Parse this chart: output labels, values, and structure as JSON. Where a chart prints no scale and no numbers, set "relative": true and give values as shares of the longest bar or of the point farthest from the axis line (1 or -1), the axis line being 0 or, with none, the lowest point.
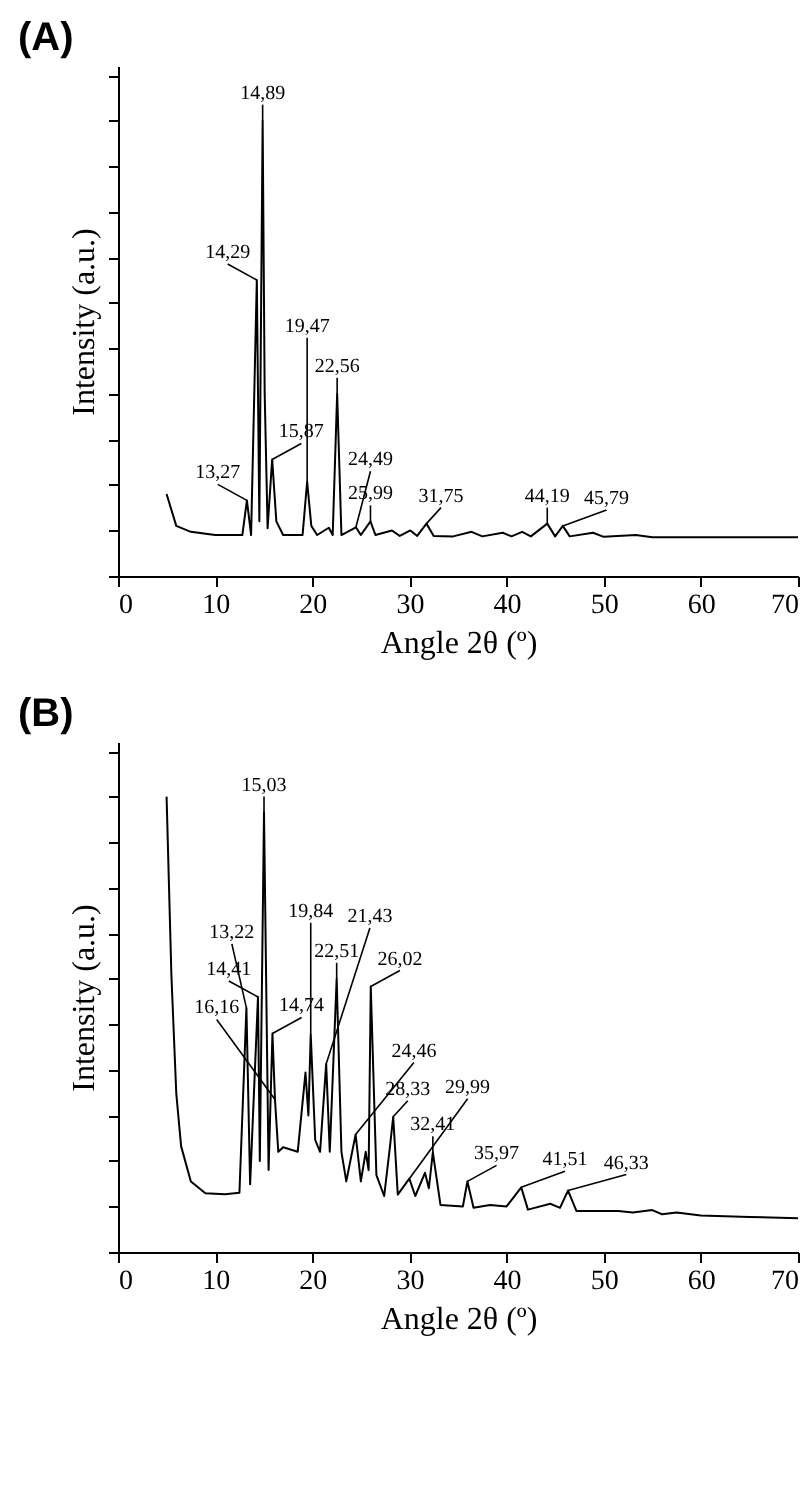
{
  "chart_data": [
    {
      "type": "line",
      "title": "(A)",
      "xlabel": "Angle 2θ (º)",
      "ylabel": "Intensity (a.u.)",
      "relative": true,
      "tick_labels": "x",
      "xlim": [
        0,
        70
      ],
      "xticks": [
        0,
        10,
        20,
        30,
        40,
        50,
        60,
        70
      ],
      "x": [
        5,
        6,
        7.5,
        10,
        12.8,
        13.27,
        13.7,
        14.29,
        14.55,
        14.89,
        15.1,
        15.4,
        15.87,
        16.3,
        17,
        19,
        19.47,
        19.9,
        20.5,
        21.7,
        22.1,
        22.56,
        23,
        24.49,
        25,
        25.99,
        26.5,
        28.2,
        29,
        30.1,
        30.8,
        31.75,
        32.5,
        34.5,
        36.4,
        37.5,
        39.6,
        40.5,
        41.6,
        42.5,
        44.19,
        45,
        45.79,
        46.5,
        48.9,
        50,
        53.3,
        55,
        70
      ],
      "series": [
        {
          "color": "#000000",
          "values": [
            0.18,
            0.11,
            0.097,
            0.09,
            0.09,
            0.166,
            0.09,
            0.65,
            0.12,
            1.0,
            0.4,
            0.105,
            0.256,
            0.12,
            0.09,
            0.09,
            0.207,
            0.11,
            0.09,
            0.106,
            0.09,
            0.4,
            0.09,
            0.107,
            0.09,
            0.12,
            0.09,
            0.1,
            0.088,
            0.1,
            0.088,
            0.115,
            0.088,
            0.087,
            0.097,
            0.087,
            0.095,
            0.087,
            0.097,
            0.087,
            0.115,
            0.087,
            0.11,
            0.087,
            0.095,
            0.086,
            0.09,
            0.085,
            0.085
          ]
        }
      ],
      "annotations": [
        {
          "text": "13,27",
          "x": 13.27,
          "y": 0.166
        },
        {
          "text": "14,29",
          "x": 14.29,
          "y": 0.65
        },
        {
          "text": "14,89",
          "x": 14.89,
          "y": 1.0
        },
        {
          "text": "15,87",
          "x": 15.87,
          "y": 0.256
        },
        {
          "text": "19,47",
          "x": 19.47,
          "y": 0.207
        },
        {
          "text": "22,56",
          "x": 22.56,
          "y": 0.4
        },
        {
          "text": "24,49",
          "x": 24.49,
          "y": 0.107
        },
        {
          "text": "25,99",
          "x": 25.99,
          "y": 0.12
        },
        {
          "text": "31,75",
          "x": 31.75,
          "y": 0.115
        },
        {
          "text": "44,19",
          "x": 44.19,
          "y": 0.115
        },
        {
          "text": "45,79",
          "x": 45.79,
          "y": 0.11
        }
      ]
    },
    {
      "type": "line",
      "title": "(B)",
      "xlabel": "Angle 2θ (º)",
      "ylabel": "Intensity (a.u.)",
      "relative": true,
      "tick_labels": "x",
      "xlim": [
        0,
        70
      ],
      "xticks": [
        0,
        10,
        20,
        30,
        40,
        50,
        60,
        70
      ],
      "x": [
        5,
        5.5,
        6,
        6.5,
        7.5,
        9,
        11,
        12.5,
        13.22,
        13.6,
        14.41,
        14.6,
        15.03,
        15.5,
        15.9,
        16.16,
        16.5,
        17,
        18.5,
        19.3,
        19.6,
        19.84,
        20.3,
        20.8,
        21.43,
        21.8,
        22.51,
        23,
        23.5,
        24.46,
        25,
        25.5,
        25.8,
        26.02,
        26.6,
        27.4,
        28,
        28.33,
        28.8,
        29.99,
        30.6,
        31.6,
        32,
        32.41,
        33.2,
        35.5,
        35.97,
        36.6,
        38.3,
        40,
        41.51,
        42.2,
        44.5,
        45.5,
        46.33,
        47.2,
        49,
        51.5,
        53,
        55,
        56,
        57.5,
        60,
        65,
        70
      ],
      "series": [
        {
          "color": "#000000",
          "values": [
            1.0,
            0.606,
            0.348,
            0.232,
            0.155,
            0.129,
            0.127,
            0.13,
            0.536,
            0.149,
            0.56,
            0.2,
            0.965,
            0.18,
            0.48,
            0.335,
            0.22,
            0.23,
            0.22,
            0.394,
            0.3,
            0.477,
            0.246,
            0.22,
            0.413,
            0.22,
            0.6,
            0.22,
            0.155,
            0.258,
            0.155,
            0.22,
            0.18,
            0.583,
            0.169,
            0.123,
            0.232,
            0.297,
            0.126,
            0.161,
            0.123,
            0.174,
            0.14,
            0.219,
            0.103,
            0.1,
            0.155,
            0.097,
            0.103,
            0.1,
            0.142,
            0.093,
            0.106,
            0.097,
            0.135,
            0.09,
            0.09,
            0.09,
            0.087,
            0.092,
            0.083,
            0.087,
            0.08,
            0.077,
            0.074
          ]
        }
      ],
      "annotations": [
        {
          "text": "13,22",
          "x": 13.22,
          "y": 0.536
        },
        {
          "text": "14,41",
          "x": 14.41,
          "y": 0.56
        },
        {
          "text": "14,74",
          "x": 15.9,
          "y": 0.48
        },
        {
          "text": "15,03",
          "x": 15.03,
          "y": 0.965
        },
        {
          "text": "16,16",
          "x": 16.16,
          "y": 0.335
        },
        {
          "text": "19,84",
          "x": 19.84,
          "y": 0.477
        },
        {
          "text": "21,43",
          "x": 21.43,
          "y": 0.413
        },
        {
          "text": "22,51",
          "x": 22.51,
          "y": 0.6
        },
        {
          "text": "24,46",
          "x": 24.46,
          "y": 0.258
        },
        {
          "text": "26,02",
          "x": 26.02,
          "y": 0.583
        },
        {
          "text": "28,33",
          "x": 28.33,
          "y": 0.297
        },
        {
          "text": "29,99",
          "x": 29.99,
          "y": 0.161
        },
        {
          "text": "32,41",
          "x": 32.41,
          "y": 0.219
        },
        {
          "text": "35,97",
          "x": 35.97,
          "y": 0.155
        },
        {
          "text": "41,51",
          "x": 41.51,
          "y": 0.142
        },
        {
          "text": "46,33",
          "x": 46.33,
          "y": 0.135
        }
      ]
    }
  ]
}
